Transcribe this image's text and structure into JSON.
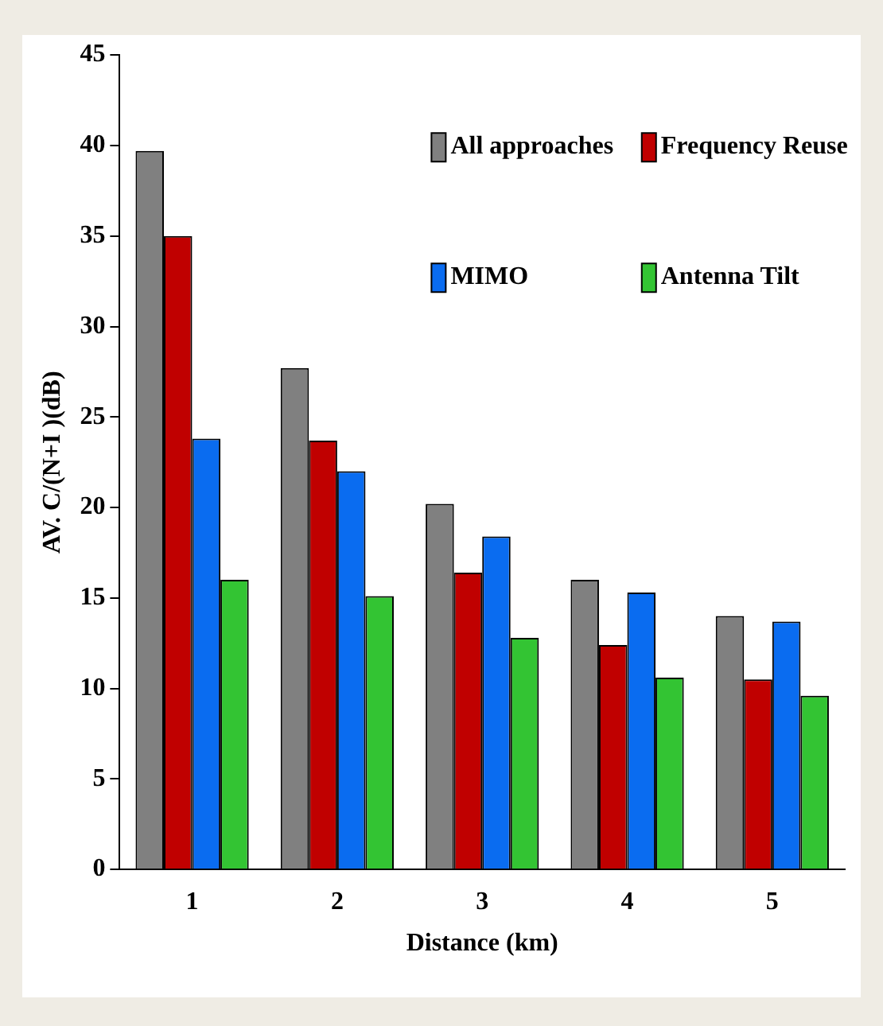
{
  "chart_data": {
    "type": "bar",
    "xlabel": "Distance (km)",
    "ylabel": "AV. C/(N+I )(dB)",
    "categories": [
      "1",
      "2",
      "3",
      "4",
      "5"
    ],
    "series": [
      {
        "name": "All approaches",
        "color": "#808080",
        "values": [
          39.7,
          27.7,
          20.2,
          16,
          14
        ]
      },
      {
        "name": "Frequency Reuse",
        "color": "#c00000",
        "values": [
          35,
          23.7,
          16.4,
          12.4,
          10.5
        ]
      },
      {
        "name": "MIMO",
        "color": "#0a6cf0",
        "values": [
          23.8,
          22,
          18.4,
          15.3,
          13.7
        ]
      },
      {
        "name": "Antenna Tilt",
        "color": "#33c433",
        "values": [
          16,
          15.1,
          12.8,
          10.6,
          9.6
        ]
      }
    ],
    "ylim": [
      0,
      45
    ],
    "yticks": [
      0,
      5,
      10,
      15,
      20,
      25,
      30,
      35,
      40,
      45
    ],
    "grid": false,
    "legend": "top right"
  }
}
